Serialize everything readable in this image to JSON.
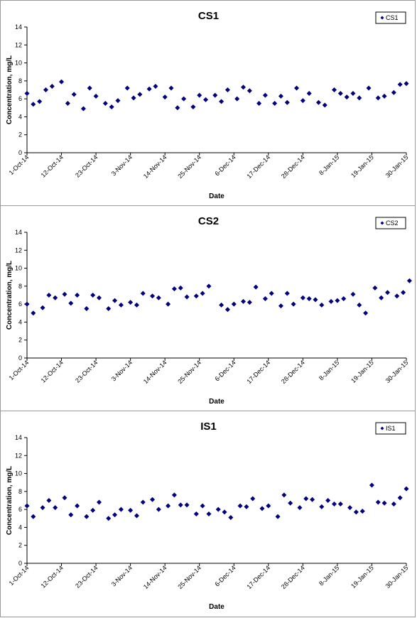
{
  "chart_data": [
    {
      "type": "scatter",
      "title": "CS1",
      "xlabel": "Date",
      "ylabel": "Concentration, mg/L",
      "legend": "top-right",
      "ylim": [
        0,
        14
      ],
      "yticks": [
        0,
        2,
        4,
        6,
        8,
        10,
        12,
        14
      ],
      "xlim": [
        "2014-10-01",
        "2015-01-30"
      ],
      "xticks": [
        "1-Oct-14",
        "12-Oct-14",
        "23-Oct-14",
        "3-Nov-14",
        "14-Nov-14",
        "25-Nov-14",
        "6-Dec-14",
        "17-Dec-14",
        "28-Dec-14",
        "8-Jan-15",
        "19-Jan-15",
        "30-Jan-15"
      ],
      "grid": false,
      "marker_color": "#000080",
      "series": [
        {
          "name": "CS1",
          "points": [
            [
              "2014-10-01",
              6.6
            ],
            [
              "2014-10-03",
              5.4
            ],
            [
              "2014-10-05",
              5.7
            ],
            [
              "2014-10-07",
              7.0
            ],
            [
              "2014-10-09",
              7.4
            ],
            [
              "2014-10-12",
              7.9
            ],
            [
              "2014-10-14",
              5.5
            ],
            [
              "2014-10-16",
              6.5
            ],
            [
              "2014-10-19",
              4.9
            ],
            [
              "2014-10-21",
              7.2
            ],
            [
              "2014-10-23",
              6.3
            ],
            [
              "2014-10-26",
              5.5
            ],
            [
              "2014-10-28",
              5.1
            ],
            [
              "2014-10-30",
              5.8
            ],
            [
              "2014-11-02",
              7.2
            ],
            [
              "2014-11-04",
              6.1
            ],
            [
              "2014-11-06",
              6.5
            ],
            [
              "2014-11-09",
              7.1
            ],
            [
              "2014-11-11",
              7.4
            ],
            [
              "2014-11-14",
              6.2
            ],
            [
              "2014-11-16",
              7.2
            ],
            [
              "2014-11-18",
              5.0
            ],
            [
              "2014-11-20",
              6.0
            ],
            [
              "2014-11-23",
              5.1
            ],
            [
              "2014-11-25",
              6.4
            ],
            [
              "2014-11-27",
              5.9
            ],
            [
              "2014-11-30",
              6.4
            ],
            [
              "2014-12-02",
              5.7
            ],
            [
              "2014-12-04",
              7.0
            ],
            [
              "2014-12-07",
              6.0
            ],
            [
              "2014-12-09",
              7.3
            ],
            [
              "2014-12-11",
              6.9
            ],
            [
              "2014-12-14",
              5.5
            ],
            [
              "2014-12-16",
              6.4
            ],
            [
              "2014-12-19",
              5.5
            ],
            [
              "2014-12-21",
              6.3
            ],
            [
              "2014-12-23",
              5.6
            ],
            [
              "2014-12-26",
              7.2
            ],
            [
              "2014-12-28",
              5.8
            ],
            [
              "2014-12-30",
              6.6
            ],
            [
              "2015-01-02",
              5.6
            ],
            [
              "2015-01-04",
              5.3
            ],
            [
              "2015-01-07",
              7.0
            ],
            [
              "2015-01-09",
              6.6
            ],
            [
              "2015-01-11",
              6.2
            ],
            [
              "2015-01-13",
              6.6
            ],
            [
              "2015-01-15",
              6.1
            ],
            [
              "2015-01-18",
              7.2
            ],
            [
              "2015-01-21",
              6.1
            ],
            [
              "2015-01-23",
              6.3
            ],
            [
              "2015-01-26",
              6.7
            ],
            [
              "2015-01-28",
              7.6
            ],
            [
              "2015-01-30",
              7.7
            ]
          ]
        }
      ]
    },
    {
      "type": "scatter",
      "title": "CS2",
      "xlabel": "Date",
      "ylabel": "Concentration, mg/L",
      "legend": "top-right",
      "ylim": [
        0,
        14
      ],
      "yticks": [
        0,
        2,
        4,
        6,
        8,
        10,
        12,
        14
      ],
      "xlim": [
        "2014-10-01",
        "2015-01-30"
      ],
      "xticks": [
        "1-Oct-14",
        "12-Oct-14",
        "23-Oct-14",
        "3-Nov-14",
        "14-Nov-14",
        "25-Nov-14",
        "6-Dec-14",
        "17-Dec-14",
        "28-Dec-14",
        "8-Jan-15",
        "19-Jan-15",
        "30-Jan-15"
      ],
      "grid": false,
      "marker_color": "#000080",
      "series": [
        {
          "name": "CS2",
          "points": [
            [
              "2014-10-01",
              6.0
            ],
            [
              "2014-10-03",
              5.0
            ],
            [
              "2014-10-06",
              5.6
            ],
            [
              "2014-10-08",
              7.0
            ],
            [
              "2014-10-10",
              6.7
            ],
            [
              "2014-10-13",
              7.1
            ],
            [
              "2014-10-15",
              6.1
            ],
            [
              "2014-10-17",
              7.0
            ],
            [
              "2014-10-20",
              5.5
            ],
            [
              "2014-10-22",
              7.0
            ],
            [
              "2014-10-24",
              6.7
            ],
            [
              "2014-10-27",
              5.5
            ],
            [
              "2014-10-29",
              6.4
            ],
            [
              "2014-10-31",
              5.9
            ],
            [
              "2014-11-03",
              6.2
            ],
            [
              "2014-11-05",
              5.9
            ],
            [
              "2014-11-07",
              7.2
            ],
            [
              "2014-11-10",
              6.9
            ],
            [
              "2014-11-12",
              6.7
            ],
            [
              "2014-11-15",
              6.0
            ],
            [
              "2014-11-17",
              7.7
            ],
            [
              "2014-11-19",
              7.8
            ],
            [
              "2014-11-21",
              6.8
            ],
            [
              "2014-11-24",
              6.9
            ],
            [
              "2014-11-26",
              7.2
            ],
            [
              "2014-11-28",
              8.0
            ],
            [
              "2014-12-02",
              5.9
            ],
            [
              "2014-12-04",
              5.4
            ],
            [
              "2014-12-06",
              6.0
            ],
            [
              "2014-12-09",
              6.3
            ],
            [
              "2014-12-11",
              6.2
            ],
            [
              "2014-12-13",
              7.9
            ],
            [
              "2014-12-16",
              6.6
            ],
            [
              "2014-12-18",
              7.2
            ],
            [
              "2014-12-21",
              5.8
            ],
            [
              "2014-12-23",
              7.2
            ],
            [
              "2014-12-25",
              6.0
            ],
            [
              "2014-12-28",
              6.7
            ],
            [
              "2014-12-30",
              6.6
            ],
            [
              "2015-01-01",
              6.5
            ],
            [
              "2015-01-03",
              5.9
            ],
            [
              "2015-01-06",
              6.3
            ],
            [
              "2015-01-08",
              6.4
            ],
            [
              "2015-01-10",
              6.6
            ],
            [
              "2015-01-13",
              7.1
            ],
            [
              "2015-01-15",
              5.9
            ],
            [
              "2015-01-17",
              5.0
            ],
            [
              "2015-01-20",
              7.8
            ],
            [
              "2015-01-22",
              6.7
            ],
            [
              "2015-01-24",
              7.3
            ],
            [
              "2015-01-27",
              6.9
            ],
            [
              "2015-01-29",
              7.3
            ],
            [
              "2015-01-31",
              8.6
            ]
          ]
        }
      ]
    },
    {
      "type": "scatter",
      "title": "IS1",
      "xlabel": "Date",
      "ylabel": "Concentration, mg/L",
      "legend": "top-right",
      "ylim": [
        0,
        14
      ],
      "yticks": [
        0,
        2,
        4,
        6,
        8,
        10,
        12,
        14
      ],
      "xlim": [
        "2014-10-01",
        "2015-01-30"
      ],
      "xticks": [
        "1-Oct-14",
        "12-Oct-14",
        "23-Oct-14",
        "3-Nov-14",
        "14-Nov-14",
        "25-Nov-14",
        "6-Dec-14",
        "17-Dec-14",
        "28-Dec-14",
        "8-Jan-15",
        "19-Jan-15",
        "30-Jan-15"
      ],
      "grid": false,
      "marker_color": "#000080",
      "series": [
        {
          "name": "IS1",
          "points": [
            [
              "2014-10-01",
              6.4
            ],
            [
              "2014-10-03",
              5.2
            ],
            [
              "2014-10-06",
              6.2
            ],
            [
              "2014-10-08",
              7.0
            ],
            [
              "2014-10-10",
              6.2
            ],
            [
              "2014-10-13",
              7.3
            ],
            [
              "2014-10-15",
              5.4
            ],
            [
              "2014-10-17",
              6.4
            ],
            [
              "2014-10-20",
              5.2
            ],
            [
              "2014-10-22",
              5.9
            ],
            [
              "2014-10-24",
              6.8
            ],
            [
              "2014-10-27",
              5.0
            ],
            [
              "2014-10-29",
              5.4
            ],
            [
              "2014-10-31",
              6.0
            ],
            [
              "2014-11-03",
              5.9
            ],
            [
              "2014-11-05",
              5.3
            ],
            [
              "2014-11-07",
              6.8
            ],
            [
              "2014-11-10",
              7.1
            ],
            [
              "2014-11-12",
              6.0
            ],
            [
              "2014-11-15",
              6.4
            ],
            [
              "2014-11-17",
              7.6
            ],
            [
              "2014-11-19",
              6.5
            ],
            [
              "2014-11-21",
              6.5
            ],
            [
              "2014-11-24",
              5.5
            ],
            [
              "2014-11-26",
              6.4
            ],
            [
              "2014-11-28",
              5.5
            ],
            [
              "2014-12-01",
              6.0
            ],
            [
              "2014-12-03",
              5.7
            ],
            [
              "2014-12-05",
              5.1
            ],
            [
              "2014-12-08",
              6.4
            ],
            [
              "2014-12-10",
              6.3
            ],
            [
              "2014-12-12",
              7.2
            ],
            [
              "2014-12-15",
              6.1
            ],
            [
              "2014-12-17",
              6.4
            ],
            [
              "2014-12-20",
              5.2
            ],
            [
              "2014-12-22",
              7.6
            ],
            [
              "2014-12-24",
              6.7
            ],
            [
              "2014-12-27",
              6.2
            ],
            [
              "2014-12-29",
              7.2
            ],
            [
              "2014-12-31",
              7.1
            ],
            [
              "2015-01-03",
              6.3
            ],
            [
              "2015-01-05",
              7.0
            ],
            [
              "2015-01-07",
              6.6
            ],
            [
              "2015-01-09",
              6.6
            ],
            [
              "2015-01-12",
              6.2
            ],
            [
              "2015-01-14",
              5.7
            ],
            [
              "2015-01-16",
              5.8
            ],
            [
              "2015-01-19",
              8.7
            ],
            [
              "2015-01-21",
              6.8
            ],
            [
              "2015-01-23",
              6.7
            ],
            [
              "2015-01-26",
              6.6
            ],
            [
              "2015-01-28",
              7.3
            ],
            [
              "2015-01-30",
              8.3
            ]
          ]
        }
      ]
    }
  ]
}
